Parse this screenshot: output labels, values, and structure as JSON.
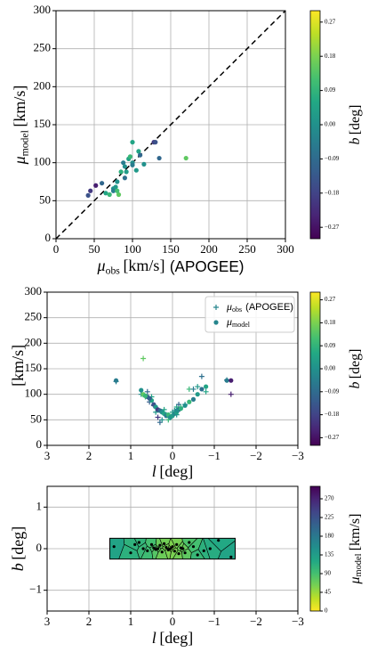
{
  "chart_data": [
    {
      "type": "scatter",
      "x_label": {
        "symbol": "μ",
        "subscript": "obs",
        "unit": "[km/s]",
        "suffix": "(APOGEE)"
      },
      "y_label": {
        "symbol": "μ",
        "subscript": "model",
        "unit": "[km/s]"
      },
      "x": [
        42,
        45,
        52,
        60,
        65,
        70,
        75,
        75,
        78,
        80,
        82,
        85,
        88,
        90,
        92,
        95,
        97,
        100,
        100,
        100,
        105,
        108,
        110,
        115,
        128,
        130,
        135,
        170,
        90,
        80
      ],
      "y": [
        57,
        63,
        70,
        73,
        60,
        58,
        66,
        63,
        68,
        75,
        58,
        88,
        100,
        95,
        88,
        105,
        108,
        127,
        100,
        97,
        90,
        115,
        110,
        98,
        127,
        127,
        106,
        106,
        80,
        63
      ],
      "c": [
        -0.15,
        -0.2,
        -0.25,
        -0.1,
        0.05,
        0.1,
        0.0,
        -0.05,
        0.02,
        0.0,
        0.15,
        0.08,
        -0.05,
        0.0,
        0.03,
        0.05,
        0.1,
        0.05,
        0.0,
        -0.05,
        0.02,
        0.05,
        -0.1,
        0.0,
        -0.2,
        -0.15,
        -0.1,
        0.15,
        -0.08,
        0.12
      ],
      "colormap": "viridis",
      "clim": [
        -0.3,
        0.3
      ],
      "colorbar": {
        "label": {
          "symbol": "b",
          "unit": "[deg]"
        },
        "ticks": [
          0.27,
          0.18,
          0.09,
          {
            "value": 0,
            "label": "0.00"
          },
          {
            "value": -0.09,
            "label": "−0.09"
          },
          {
            "value": -0.18,
            "label": "−0.18"
          },
          {
            "value": -0.27,
            "label": "−0.27"
          }
        ]
      },
      "reference_line": {
        "x": [
          0,
          300
        ],
        "y": [
          0,
          300
        ],
        "color": "#000000",
        "style": "dashed"
      },
      "xlim": [
        0,
        300
      ],
      "ylim": [
        0,
        300
      ],
      "xticks": [
        0,
        50,
        100,
        150,
        200,
        250,
        300
      ],
      "yticks": [
        0,
        50,
        100,
        150,
        200,
        250,
        300
      ],
      "grid": true
    },
    {
      "type": "scatter",
      "x_label": {
        "symbol": "l",
        "unit": "[deg]"
      },
      "y_label": {
        "unit": "[km/s]"
      },
      "x": [
        1.35,
        0.75,
        0.7,
        0.6,
        0.5,
        0.45,
        0.4,
        0.35,
        0.3,
        0.25,
        0.2,
        0.15,
        0.1,
        0.05,
        0.0,
        -0.05,
        -0.1,
        -0.15,
        -0.2,
        -0.3,
        -0.4,
        -0.5,
        -0.6,
        -0.7,
        -0.8,
        -1.3,
        -1.4,
        0.65,
        0.55,
        -0.1
      ],
      "series": [
        {
          "name": {
            "symbol": "μ",
            "subscript": "obs",
            "suffix": "(APOGEE)"
          },
          "marker": "plus",
          "values": [
            125,
            100,
            170,
            105,
            95,
            78,
            65,
            55,
            45,
            50,
            70,
            60,
            50,
            55,
            65,
            68,
            75,
            80,
            75,
            80,
            110,
            110,
            115,
            135,
            105,
            128,
            100,
            95,
            85,
            60
          ]
        },
        {
          "name": {
            "symbol": "μ",
            "subscript": "model"
          },
          "marker": "circle",
          "values": [
            127,
            108,
            100,
            95,
            88,
            80,
            75,
            70,
            68,
            65,
            62,
            58,
            60,
            55,
            58,
            62,
            65,
            70,
            72,
            78,
            85,
            90,
            100,
            110,
            115,
            127,
            127,
            97,
            92,
            68
          ]
        }
      ],
      "c": [
        -0.05,
        0.0,
        0.15,
        -0.1,
        0.05,
        -0.15,
        0.02,
        -0.2,
        -0.1,
        0.0,
        0.05,
        -0.05,
        0.1,
        0.0,
        0.03,
        -0.02,
        0.05,
        -0.1,
        0.08,
        0.0,
        0.1,
        -0.05,
        0.02,
        -0.08,
        0.05,
        -0.05,
        -0.25,
        0.1,
        -0.12,
        0.0
      ],
      "colormap": "viridis",
      "clim": [
        -0.3,
        0.3
      ],
      "colorbar": {
        "label": {
          "symbol": "b",
          "unit": "[deg]"
        },
        "ticks": [
          0.27,
          0.18,
          0.09,
          {
            "value": 0,
            "label": "0.00"
          },
          {
            "value": -0.09,
            "label": "−0.09"
          },
          {
            "value": -0.18,
            "label": "−0.18"
          },
          {
            "value": -0.27,
            "label": "−0.27"
          }
        ]
      },
      "legend": "upper right",
      "xlim": [
        3,
        -3
      ],
      "ylim": [
        0,
        300
      ],
      "xticks": [
        3,
        2,
        1,
        0,
        {
          "value": -1,
          "label": "−1"
        },
        {
          "value": -2,
          "label": "−2"
        },
        {
          "value": -3,
          "label": "−3"
        }
      ],
      "yticks": [
        0,
        50,
        100,
        150,
        200,
        250,
        300
      ],
      "grid": true
    },
    {
      "type": "voronoi",
      "x_label": {
        "symbol": "l",
        "unit": "[deg]"
      },
      "y_label": {
        "symbol": "b",
        "unit": "[deg]"
      },
      "x": [
        1.4,
        1.0,
        0.8,
        0.7,
        0.6,
        0.5,
        0.45,
        0.4,
        0.35,
        0.3,
        0.25,
        0.2,
        0.15,
        0.1,
        0.05,
        0.0,
        -0.05,
        -0.1,
        -0.15,
        -0.2,
        -0.25,
        -0.3,
        -0.4,
        -0.5,
        -0.6,
        -0.75,
        -0.9,
        -1.1,
        -1.4,
        0.9
      ],
      "y": [
        0.05,
        -0.1,
        0.15,
        0.0,
        -0.05,
        0.1,
        0.02,
        -0.02,
        0.0,
        0.08,
        -0.08,
        0.12,
        0.03,
        -0.03,
        0.0,
        0.05,
        -0.06,
        0.1,
        -0.12,
        0.02,
        0.0,
        -0.1,
        0.15,
        0.05,
        -0.15,
        -0.05,
        0.0,
        0.2,
        -0.2,
        0.1
      ],
      "values": [
        127,
        110,
        105,
        100,
        95,
        90,
        85,
        80,
        75,
        70,
        68,
        65,
        62,
        60,
        58,
        58,
        60,
        62,
        65,
        68,
        70,
        75,
        85,
        90,
        100,
        110,
        115,
        120,
        127,
        108
      ],
      "region": {
        "xlim": [
          1.5,
          -1.5
        ],
        "ylim": [
          -0.25,
          0.25
        ]
      },
      "colormap": "viridis_r",
      "clim": [
        0,
        300
      ],
      "colorbar": {
        "label": {
          "symbol": "μ",
          "subscript": "model",
          "unit": "[km/s]"
        },
        "ticks": [
          0,
          45,
          90,
          135,
          180,
          225,
          270
        ]
      },
      "xlim": [
        3,
        -3
      ],
      "ylim": [
        -1.5,
        1.5
      ],
      "xticks": [
        3,
        2,
        1,
        0,
        {
          "value": -1,
          "label": "−1"
        },
        {
          "value": -2,
          "label": "−2"
        },
        {
          "value": -3,
          "label": "−3"
        }
      ],
      "yticks": [
        {
          "value": -1,
          "label": "−1"
        },
        0,
        1
      ],
      "grid": true
    }
  ]
}
